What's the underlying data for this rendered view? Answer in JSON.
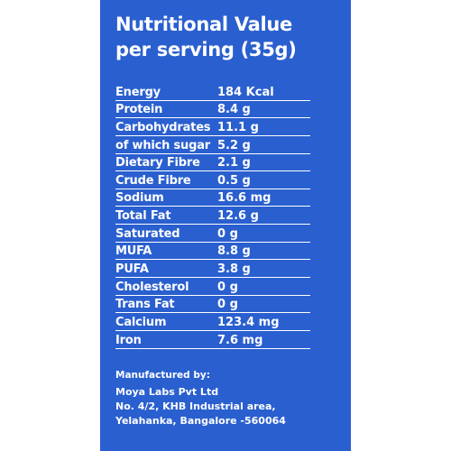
{
  "panel": {
    "title_line1": "Nutritional Value",
    "title_line2": "per serving (35g)"
  },
  "nutrition": {
    "rows": [
      {
        "name": "Energy",
        "value": "184 Kcal"
      },
      {
        "name": "Protein",
        "value": "8.4 g"
      },
      {
        "name": "Carbohydrates",
        "value": "11.1 g"
      },
      {
        "name": "of which sugar",
        "value": "5.2 g"
      },
      {
        "name": "Dietary Fibre",
        "value": "2.1 g"
      },
      {
        "name": "Crude Fibre",
        "value": "0.5 g"
      },
      {
        "name": "Sodium",
        "value": "16.6 mg"
      },
      {
        "name": "Total Fat",
        "value": "12.6 g"
      },
      {
        "name": "Saturated",
        "value": "0 g"
      },
      {
        "name": "MUFA",
        "value": "8.8 g"
      },
      {
        "name": "PUFA",
        "value": "3.8 g"
      },
      {
        "name": "Cholesterol",
        "value": "0 g"
      },
      {
        "name": "Trans Fat",
        "value": "0 g"
      },
      {
        "name": "Calcium",
        "value": "123.4 mg"
      },
      {
        "name": "Iron",
        "value": "7.6 mg"
      }
    ]
  },
  "manufacturer": {
    "label": "Manufactured by:",
    "name": "Moya Labs Pvt Ltd",
    "address_line1": "No. 4/2, KHB Industrial area,",
    "address_line2": "Yelahanka, Bangalore -560064"
  },
  "colors": {
    "panel_background": "#2a5fcf",
    "text": "#ffffff",
    "page_background": "#ffffff"
  }
}
